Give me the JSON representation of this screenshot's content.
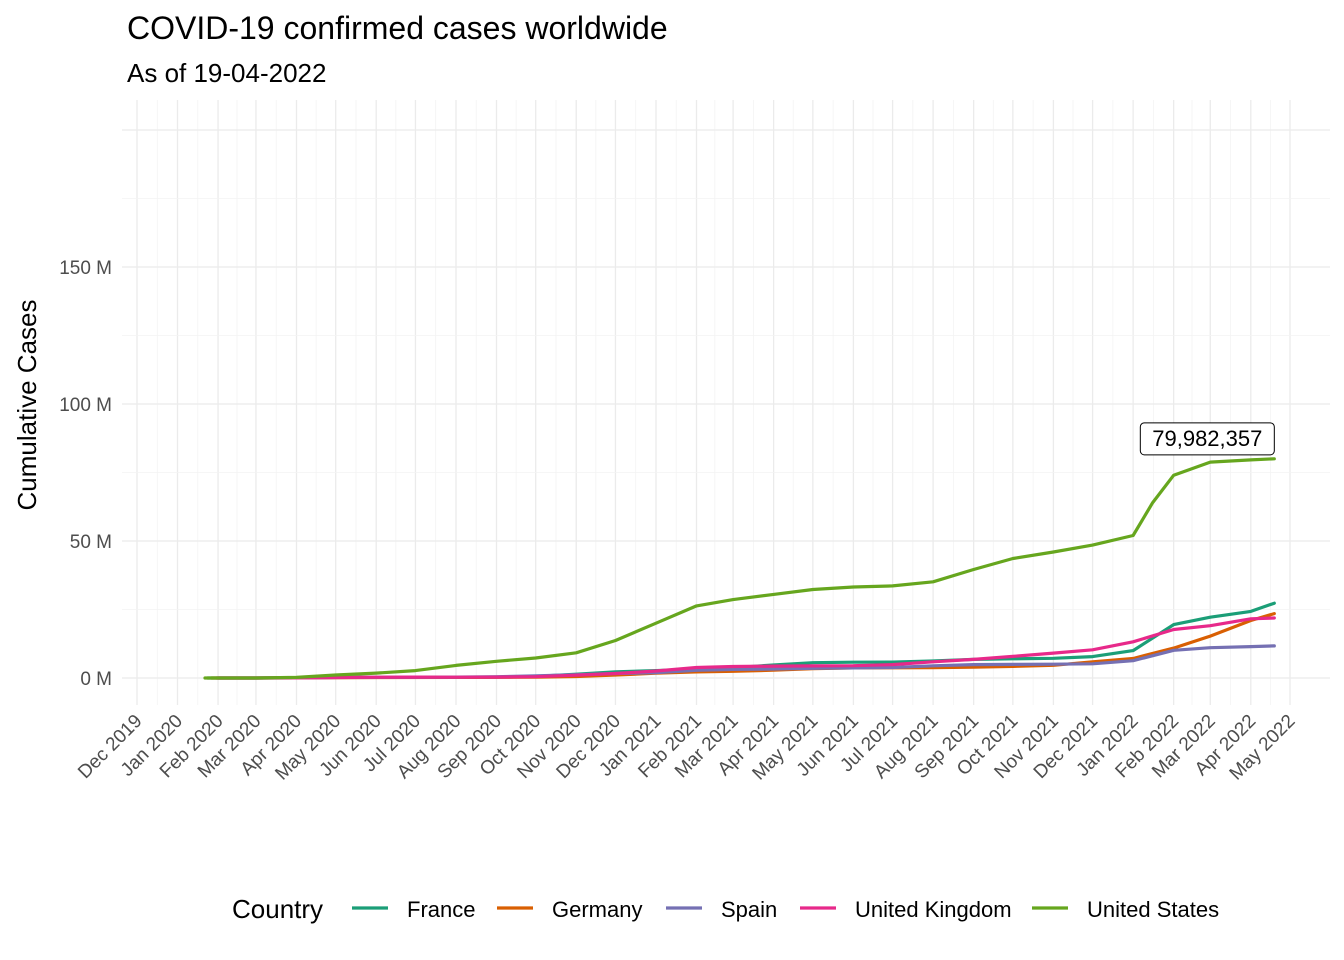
{
  "chart_data": {
    "type": "line",
    "title": "COVID-19 confirmed cases worldwide",
    "subtitle": "As of 19-04-2022",
    "xlabel": "",
    "ylabel": "Cumulative Cases",
    "x_ticks": [
      "Dec 2019",
      "Jan 2020",
      "Feb 2020",
      "Mar 2020",
      "Apr 2020",
      "May 2020",
      "Jun 2020",
      "Jul 2020",
      "Aug 2020",
      "Sep 2020",
      "Oct 2020",
      "Nov 2020",
      "Dec 2020",
      "Jan 2021",
      "Feb 2021",
      "Mar 2021",
      "Apr 2021",
      "May 2021",
      "Jun 2021",
      "Jul 2021",
      "Aug 2021",
      "Sep 2021",
      "Oct 2021",
      "Nov 2021",
      "Dec 2021",
      "Jan 2022",
      "Feb 2022",
      "Mar 2022",
      "Apr 2022",
      "May 2022"
    ],
    "x_range": [
      "2019-12-01",
      "2022-05-01"
    ],
    "y_ticks": [
      {
        "value": 0,
        "label": "0 M"
      },
      {
        "value": 50000000,
        "label": "50 M"
      },
      {
        "value": 100000000,
        "label": "100 M"
      },
      {
        "value": 150000000,
        "label": "150 M"
      }
    ],
    "ylim": [
      0,
      200000000
    ],
    "grid": true,
    "legend": {
      "title": "Country",
      "position": "bottom"
    },
    "annotation": {
      "label": "79,982,357",
      "series": "United States",
      "x": "2022-04-19",
      "y": 79982357
    },
    "series": [
      {
        "name": "France",
        "color": "#1B9E77",
        "points": [
          [
            "2020-01-24",
            0
          ],
          [
            "2020-03-01",
            100
          ],
          [
            "2020-04-01",
            52000
          ],
          [
            "2020-05-01",
            168000
          ],
          [
            "2020-07-01",
            203000
          ],
          [
            "2020-08-01",
            225000
          ],
          [
            "2020-09-01",
            294000
          ],
          [
            "2020-10-01",
            578000
          ],
          [
            "2020-11-01",
            1400000
          ],
          [
            "2020-12-01",
            2230000
          ],
          [
            "2021-01-01",
            2700000
          ],
          [
            "2021-02-01",
            3250000
          ],
          [
            "2021-03-01",
            3750000
          ],
          [
            "2021-04-01",
            4750000
          ],
          [
            "2021-05-01",
            5600000
          ],
          [
            "2021-06-01",
            5750000
          ],
          [
            "2021-07-01",
            5800000
          ],
          [
            "2021-08-01",
            6200000
          ],
          [
            "2021-09-01",
            6800000
          ],
          [
            "2021-10-01",
            7000000
          ],
          [
            "2021-11-01",
            7200000
          ],
          [
            "2021-12-01",
            7800000
          ],
          [
            "2022-01-01",
            10000000
          ],
          [
            "2022-02-01",
            19500000
          ],
          [
            "2022-03-01",
            22200000
          ],
          [
            "2022-04-01",
            24300000
          ],
          [
            "2022-04-19",
            27300000
          ]
        ]
      },
      {
        "name": "Germany",
        "color": "#D95F02",
        "points": [
          [
            "2020-01-27",
            0
          ],
          [
            "2020-03-01",
            130
          ],
          [
            "2020-04-01",
            72000
          ],
          [
            "2020-05-01",
            163000
          ],
          [
            "2020-06-01",
            183000
          ],
          [
            "2020-08-01",
            210000
          ],
          [
            "2020-09-01",
            245000
          ],
          [
            "2020-10-01",
            295000
          ],
          [
            "2020-11-01",
            532000
          ],
          [
            "2020-12-01",
            1080000
          ],
          [
            "2021-01-01",
            1760000
          ],
          [
            "2021-02-01",
            2230000
          ],
          [
            "2021-03-01",
            2450000
          ],
          [
            "2021-04-01",
            2860000
          ],
          [
            "2021-05-01",
            3400000
          ],
          [
            "2021-06-01",
            3690000
          ],
          [
            "2021-07-01",
            3735000
          ],
          [
            "2021-08-01",
            3790000
          ],
          [
            "2021-09-01",
            3980000
          ],
          [
            "2021-10-01",
            4240000
          ],
          [
            "2021-11-01",
            4650000
          ],
          [
            "2021-12-01",
            5900000
          ],
          [
            "2022-01-01",
            7100000
          ],
          [
            "2022-02-01",
            10900000
          ],
          [
            "2022-03-01",
            15300000
          ],
          [
            "2022-04-01",
            21000000
          ],
          [
            "2022-04-19",
            23500000
          ]
        ]
      },
      {
        "name": "Spain",
        "color": "#7570B3",
        "points": [
          [
            "2020-02-01",
            0
          ],
          [
            "2020-03-01",
            80
          ],
          [
            "2020-04-01",
            104000
          ],
          [
            "2020-05-01",
            213000
          ],
          [
            "2020-06-01",
            240000
          ],
          [
            "2020-07-01",
            250000
          ],
          [
            "2020-08-01",
            330000
          ],
          [
            "2020-09-01",
            463000
          ],
          [
            "2020-10-01",
            790000
          ],
          [
            "2020-11-01",
            1200000
          ],
          [
            "2020-12-01",
            1650000
          ],
          [
            "2021-01-01",
            1930000
          ],
          [
            "2021-02-01",
            2820000
          ],
          [
            "2021-03-01",
            3130000
          ],
          [
            "2021-04-01",
            3300000
          ],
          [
            "2021-05-01",
            3530000
          ],
          [
            "2021-06-01",
            3690000
          ],
          [
            "2021-07-01",
            3830000
          ],
          [
            "2021-08-01",
            4450000
          ],
          [
            "2021-09-01",
            4900000
          ],
          [
            "2021-10-01",
            4970000
          ],
          [
            "2021-11-01",
            5030000
          ],
          [
            "2021-12-01",
            5190000
          ],
          [
            "2022-01-01",
            6300000
          ],
          [
            "2022-02-01",
            10100000
          ],
          [
            "2022-03-01",
            11050000
          ],
          [
            "2022-04-01",
            11450000
          ],
          [
            "2022-04-19",
            11700000
          ]
        ]
      },
      {
        "name": "United Kingdom",
        "color": "#E7298A",
        "points": [
          [
            "2020-01-31",
            0
          ],
          [
            "2020-03-01",
            36
          ],
          [
            "2020-04-01",
            30000
          ],
          [
            "2020-05-01",
            178000
          ],
          [
            "2020-06-01",
            277000
          ],
          [
            "2020-07-01",
            313000
          ],
          [
            "2020-08-01",
            305000
          ],
          [
            "2020-09-01",
            340000
          ],
          [
            "2020-10-01",
            464000
          ],
          [
            "2020-11-01",
            1030000
          ],
          [
            "2020-12-01",
            1650000
          ],
          [
            "2021-01-01",
            2550000
          ],
          [
            "2021-02-01",
            3850000
          ],
          [
            "2021-03-01",
            4190000
          ],
          [
            "2021-04-01",
            4350000
          ],
          [
            "2021-05-01",
            4420000
          ],
          [
            "2021-06-01",
            4490000
          ],
          [
            "2021-07-01",
            4880000
          ],
          [
            "2021-08-01",
            5900000
          ],
          [
            "2021-09-01",
            6800000
          ],
          [
            "2021-10-01",
            7900000
          ],
          [
            "2021-11-01",
            9100000
          ],
          [
            "2021-12-01",
            10300000
          ],
          [
            "2022-01-01",
            13200000
          ],
          [
            "2022-02-01",
            17700000
          ],
          [
            "2022-03-01",
            19100000
          ],
          [
            "2022-04-01",
            21600000
          ],
          [
            "2022-04-19",
            21900000
          ]
        ]
      },
      {
        "name": "United States",
        "color": "#66A61E",
        "points": [
          [
            "2020-01-22",
            0
          ],
          [
            "2020-03-01",
            75
          ],
          [
            "2020-04-01",
            215000
          ],
          [
            "2020-05-01",
            1100000
          ],
          [
            "2020-06-01",
            1800000
          ],
          [
            "2020-07-01",
            2700000
          ],
          [
            "2020-08-01",
            4600000
          ],
          [
            "2020-09-01",
            6100000
          ],
          [
            "2020-10-01",
            7300000
          ],
          [
            "2020-11-01",
            9200000
          ],
          [
            "2020-12-01",
            13700000
          ],
          [
            "2021-01-01",
            20000000
          ],
          [
            "2021-02-01",
            26300000
          ],
          [
            "2021-03-01",
            28600000
          ],
          [
            "2021-04-01",
            30500000
          ],
          [
            "2021-05-01",
            32300000
          ],
          [
            "2021-06-01",
            33200000
          ],
          [
            "2021-07-01",
            33600000
          ],
          [
            "2021-08-01",
            35100000
          ],
          [
            "2021-09-01",
            39600000
          ],
          [
            "2021-10-01",
            43600000
          ],
          [
            "2021-11-01",
            46000000
          ],
          [
            "2021-12-01",
            48500000
          ],
          [
            "2022-01-01",
            52000000
          ],
          [
            "2022-01-16",
            64000000
          ],
          [
            "2022-02-01",
            74000000
          ],
          [
            "2022-03-01",
            78800000
          ],
          [
            "2022-04-01",
            79600000
          ],
          [
            "2022-04-19",
            79982357
          ]
        ]
      }
    ]
  }
}
